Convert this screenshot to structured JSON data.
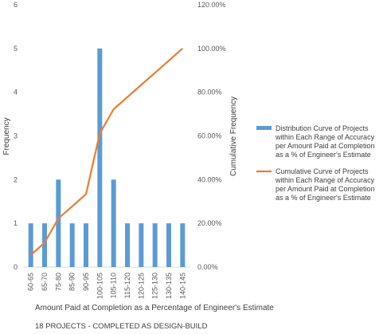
{
  "chart_data": {
    "type": "bar",
    "categories": [
      "60-65",
      "65-70",
      "75-80",
      "85-90",
      "90-95",
      "100-105",
      "105-110",
      "115-120",
      "120-125",
      "125-130",
      "130-135",
      "140-145"
    ],
    "series": [
      {
        "name": "Distribution Curve of Projects within Each Range of Accuracy per Amount Paid at Completion as a % of Engineer's Estimate",
        "type": "bar",
        "axis": "left",
        "color": "#5B9BD5",
        "values": [
          1,
          1,
          2,
          1,
          1,
          5,
          2,
          1,
          1,
          1,
          1,
          1
        ]
      },
      {
        "name": "Cumulative Curve of Projects within Each Range of Accuracy per Amount Paid at Completion as a % of Engineer's Estimate",
        "type": "line",
        "axis": "right",
        "color": "#ED7D31",
        "values": [
          5.56,
          11.11,
          22.22,
          27.78,
          33.33,
          61.11,
          72.22,
          77.78,
          83.33,
          88.89,
          94.44,
          100.0
        ]
      }
    ],
    "ylabel": "Frequency",
    "y2label": "Cumulative Frequency",
    "xlabel": "Amount Paid at Completion as a Percentage of Engineer's Estimate",
    "ylim": [
      0,
      6
    ],
    "y2lim": [
      0,
      120
    ],
    "yticks": [
      "0",
      "1",
      "2",
      "3",
      "4",
      "5",
      "6"
    ],
    "y2ticks": [
      "0.00%",
      "20.00%",
      "40.00%",
      "60.00%",
      "80.00%",
      "100.00%",
      "120.00%"
    ],
    "legend_position": "right",
    "legend": [
      [
        "Distribution Curve of Projects",
        "within Each Range of Accuracy",
        "per Amount Paid at Completion",
        "as  a % of Engineer's Estimate"
      ],
      [
        "Cumulative Curve of Projects",
        "within Each Range of Accuracy",
        "per Amount Paid at Completion",
        "as  a % of Engineer's Estimate"
      ]
    ],
    "footer": "18 PROJECTS - COMPLETED AS DESIGN-BUILD",
    "grid": false
  }
}
